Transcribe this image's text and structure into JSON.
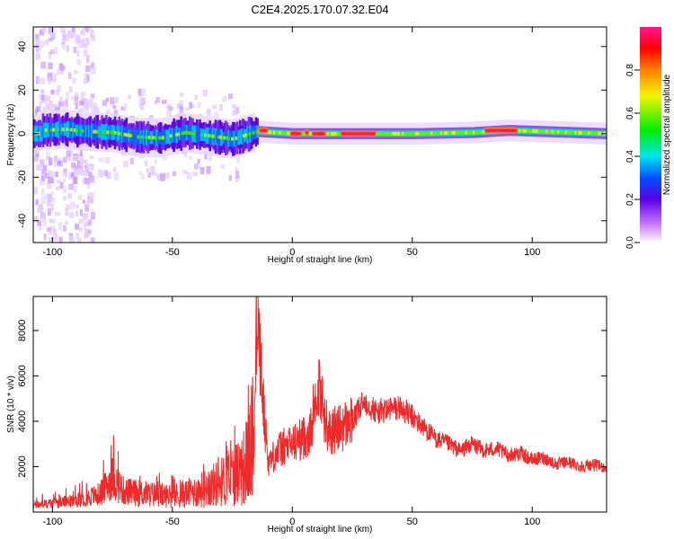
{
  "title": "C2E4.2025.170.07.32.E04",
  "colors": {
    "snr_line": "#ee2a2a",
    "axis": "#000000",
    "background": "#ffffff"
  },
  "chart_data": [
    {
      "type": "heatmap",
      "title": "C2E4.2025.170.07.32.E04",
      "xlabel": "Height of straight line (km)",
      "ylabel": "Frequency (Hz)",
      "xlim": [
        -108,
        131
      ],
      "ylim": [
        -50,
        49
      ],
      "x_ticks": [
        -100,
        -50,
        0,
        50,
        100
      ],
      "y_ticks": [
        -40,
        -20,
        0,
        20,
        40
      ],
      "grid": false,
      "colorbar": {
        "label": "Normalized spectral amplitude",
        "range": [
          0,
          1
        ],
        "ticks": [
          0.0,
          0.2,
          0.4,
          0.6,
          0.8
        ],
        "colormap": "white-violet-blue-cyan-green-yellow-orange-red-magenta"
      },
      "ridge": [
        {
          "x": -105,
          "f": 1.5
        },
        {
          "x": -95,
          "f": 2
        },
        {
          "x": -85,
          "f": 1
        },
        {
          "x": -75,
          "f": 0.5
        },
        {
          "x": -65,
          "f": -1.5
        },
        {
          "x": -55,
          "f": -2
        },
        {
          "x": -45,
          "f": 0.5
        },
        {
          "x": -35,
          "f": -1
        },
        {
          "x": -25,
          "f": -2.5
        },
        {
          "x": -15,
          "f": 1
        },
        {
          "x": 0,
          "f": 0
        },
        {
          "x": 25,
          "f": 0
        },
        {
          "x": 50,
          "f": 0
        },
        {
          "x": 75,
          "f": 0.5
        },
        {
          "x": 90,
          "f": 1.5
        },
        {
          "x": 131,
          "f": 0
        }
      ],
      "peak_segments": [
        {
          "x": [
            -14,
            -10
          ],
          "f": 1.5
        },
        {
          "x": [
            -1,
            4
          ],
          "f": 0
        },
        {
          "x": [
            5,
            7
          ],
          "f": 0.5
        },
        {
          "x": [
            8,
            14
          ],
          "f": 0
        },
        {
          "x": [
            20,
            35
          ],
          "f": 0
        },
        {
          "x": [
            80,
            94
          ],
          "f": 1.5
        }
      ]
    },
    {
      "type": "line",
      "xlabel": "Height of straight line (km)",
      "ylabel": "SNR (10 * v/v)",
      "xlim": [
        -108,
        131
      ],
      "ylim": [
        0,
        9500
      ],
      "x_ticks": [
        -100,
        -50,
        0,
        50,
        100
      ],
      "y_ticks": [
        2000,
        4000,
        6000,
        8000
      ],
      "grid": false,
      "series": [
        {
          "x": [
            -108,
            -100,
            -90,
            -80,
            -75,
            -70,
            -60,
            -50,
            -40,
            -30,
            -25,
            -20,
            -18,
            -16,
            -15,
            -12,
            -10,
            -5,
            0,
            5,
            8,
            10,
            15,
            20,
            25,
            30,
            35,
            40,
            45,
            50,
            55,
            60,
            65,
            70,
            75,
            80,
            85,
            90,
            95,
            100,
            105,
            110,
            115,
            120,
            125,
            131
          ],
          "y": [
            300,
            400,
            500,
            800,
            1500,
            900,
            800,
            700,
            900,
            1300,
            1600,
            2000,
            2500,
            3500,
            9400,
            4600,
            2200,
            2800,
            3000,
            3300,
            3600,
            6100,
            3500,
            3700,
            4000,
            4900,
            4400,
            4500,
            4600,
            4200,
            3700,
            3200,
            3000,
            2700,
            3000,
            2700,
            2800,
            2500,
            2600,
            2300,
            2400,
            2100,
            2200,
            2000,
            2100,
            1950
          ]
        }
      ]
    }
  ]
}
